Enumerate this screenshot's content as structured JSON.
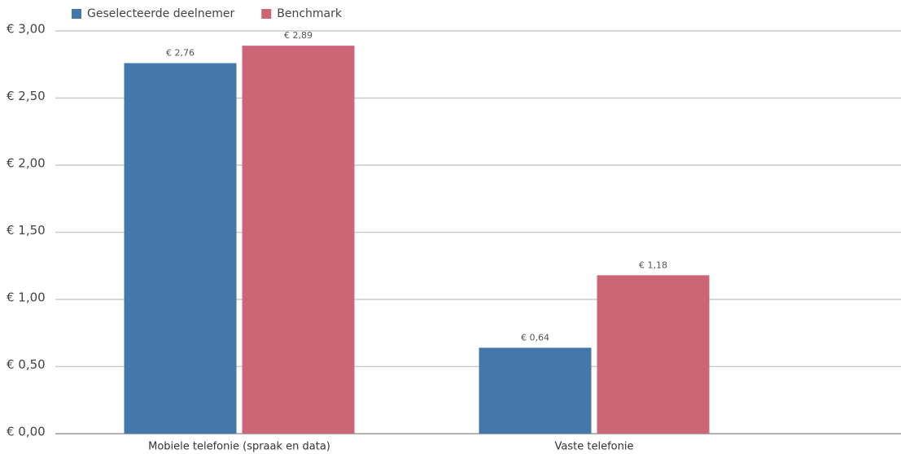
{
  "chart_data": {
    "type": "bar",
    "categories": [
      "Mobiele telefonie (spraak en data)",
      "Vaste telefonie"
    ],
    "series": [
      {
        "name": "Geselecteerde deelnemer",
        "color": "#4477aa",
        "values": [
          2.76,
          0.64
        ],
        "value_labels": [
          "€ 2,76",
          "€ 0,64"
        ]
      },
      {
        "name": "Benchmark",
        "color": "#cc6677",
        "values": [
          2.89,
          1.18
        ],
        "value_labels": [
          "€ 2,89",
          "€ 1,18"
        ]
      }
    ],
    "ylim": [
      0,
      3
    ],
    "yticks": [
      {
        "value": 0,
        "label": "€ 0,00"
      },
      {
        "value": 0.5,
        "label": "€ 0,50"
      },
      {
        "value": 1,
        "label": "€ 1,00"
      },
      {
        "value": 1.5,
        "label": "€ 1,50"
      },
      {
        "value": 2,
        "label": "€ 2,00"
      },
      {
        "value": 2.5,
        "label": "€ 2,50"
      },
      {
        "value": 3,
        "label": "€ 3,00"
      }
    ],
    "grid": true,
    "legend": "top-left"
  }
}
